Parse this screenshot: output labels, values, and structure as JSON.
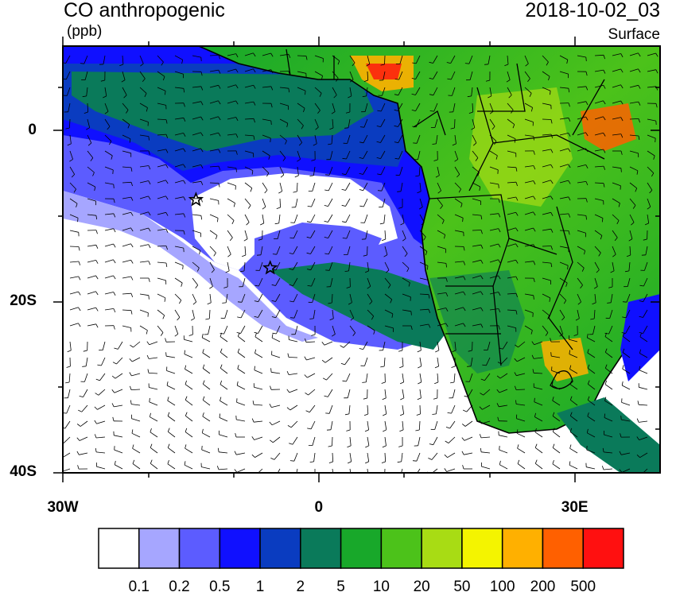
{
  "header": {
    "title": "CO anthropogenic",
    "units": "(ppb)",
    "datetime": "2018-10-02_03",
    "level": "Surface"
  },
  "axes": {
    "lat_labels": [
      {
        "text": "0",
        "lat": 0
      },
      {
        "text": "20S",
        "lat": -20
      },
      {
        "text": "40S",
        "lat": -40
      }
    ],
    "lon_labels": [
      {
        "text": "30W",
        "lon": -30
      },
      {
        "text": "0",
        "lon": 0
      },
      {
        "text": "30E",
        "lon": 30
      }
    ],
    "lat_range": [
      -40,
      10
    ],
    "lon_range": [
      -30,
      40
    ]
  },
  "colorbar": {
    "colors": [
      "#ffffff",
      "#a6a6ff",
      "#5c5cff",
      "#1010ff",
      "#0a3cc0",
      "#0a7a5a",
      "#18a82a",
      "#4cc21a",
      "#a8dc14",
      "#f4f400",
      "#ffb000",
      "#ff6000",
      "#ff1010"
    ],
    "labels": [
      "0.1",
      "0.2",
      "0.5",
      "1",
      "2",
      "5",
      "10",
      "20",
      "50",
      "100",
      "200",
      "500"
    ]
  },
  "markers": [
    {
      "name": "star",
      "lon": -14.4,
      "lat": -8
    },
    {
      "name": "star",
      "lon": -5.7,
      "lat": -16
    }
  ]
}
